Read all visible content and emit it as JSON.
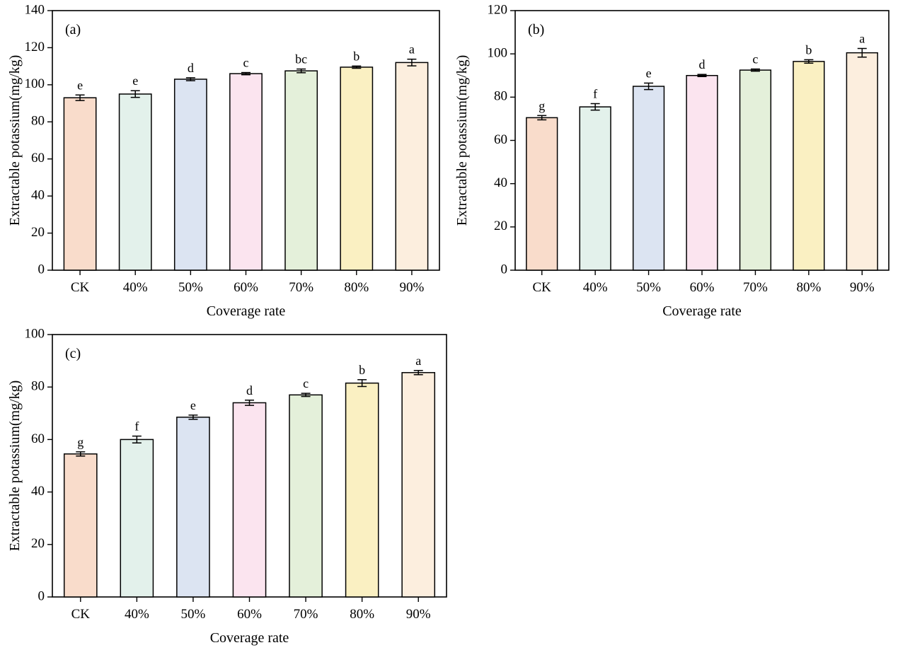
{
  "figure": {
    "background_color": "#ffffff",
    "axis_color": "#000000",
    "bar_edge_color": "#000000",
    "bar_palette": [
      "#F9DCCB",
      "#E3F1EB",
      "#DCE4F2",
      "#FBE4EF",
      "#E4F0DA",
      "#FAF0C2",
      "#FCEEDE"
    ],
    "error_bar_color": "#000000"
  },
  "chart_data": [
    {
      "type": "bar",
      "panel_label": "(a)",
      "title": "",
      "xlabel": "Coverage rate",
      "ylabel": "Extractable potassium(mg/kg)",
      "categories": [
        "CK",
        "40%",
        "50%",
        "60%",
        "70%",
        "80%",
        "90%"
      ],
      "values": [
        93,
        95,
        103,
        106,
        107.5,
        109.5,
        112
      ],
      "errors": [
        1.5,
        1.8,
        0.8,
        0.6,
        1.0,
        0.6,
        1.8
      ],
      "sig_letters": [
        "e",
        "e",
        "d",
        "c",
        "bc",
        "b",
        "a"
      ],
      "ylim": [
        0,
        140
      ],
      "ytick_step": 20,
      "grid": false,
      "legend": "none"
    },
    {
      "type": "bar",
      "panel_label": "(b)",
      "title": "",
      "xlabel": "Coverage rate",
      "ylabel": "Extractable potassium(mg/kg)",
      "categories": [
        "CK",
        "40%",
        "50%",
        "60%",
        "70%",
        "80%",
        "90%"
      ],
      "values": [
        70.5,
        75.5,
        85,
        90,
        92.5,
        96.5,
        100.5
      ],
      "errors": [
        1.0,
        1.5,
        1.5,
        0.5,
        0.5,
        0.8,
        2.0
      ],
      "sig_letters": [
        "g",
        "f",
        "e",
        "d",
        "c",
        "b",
        "a"
      ],
      "ylim": [
        0,
        120
      ],
      "ytick_step": 20,
      "grid": false,
      "legend": "none"
    },
    {
      "type": "bar",
      "panel_label": "(c)",
      "title": "",
      "xlabel": "Coverage rate",
      "ylabel": "Extractable potassium(mg/kg)",
      "categories": [
        "CK",
        "40%",
        "50%",
        "60%",
        "70%",
        "80%",
        "90%"
      ],
      "values": [
        54.5,
        60,
        68.5,
        74,
        77,
        81.5,
        85.5
      ],
      "errors": [
        0.8,
        1.3,
        0.8,
        1.0,
        0.6,
        1.3,
        0.8
      ],
      "sig_letters": [
        "g",
        "f",
        "e",
        "d",
        "c",
        "b",
        "a"
      ],
      "ylim": [
        0,
        100
      ],
      "ytick_step": 20,
      "grid": false,
      "legend": "none"
    }
  ]
}
